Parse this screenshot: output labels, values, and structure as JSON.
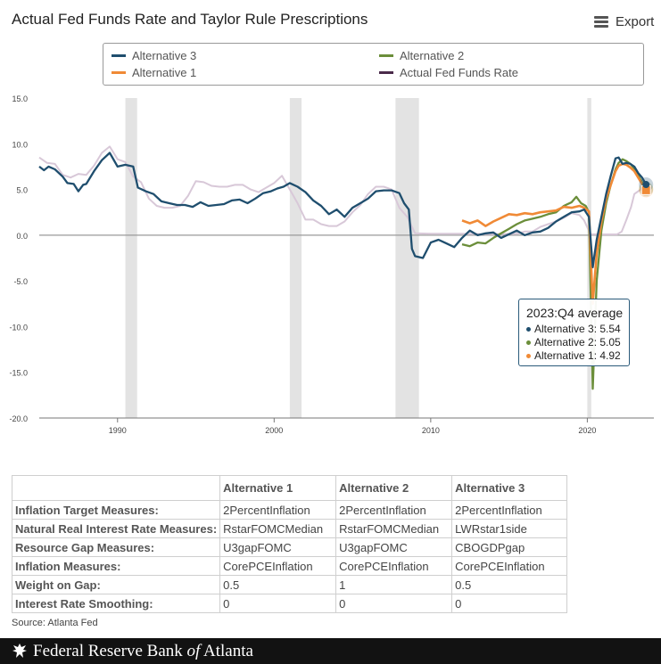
{
  "title": "Actual Fed Funds Rate and Taylor Rule Prescriptions",
  "export_label": "Export",
  "legend": [
    {
      "label": "Alternative 3",
      "color": "#1f4e6e"
    },
    {
      "label": "Alternative 2",
      "color": "#6b8e3a"
    },
    {
      "label": "Alternative 1",
      "color": "#f08a36"
    },
    {
      "label": "Actual Fed Funds Rate",
      "color": "#4a2a4a"
    }
  ],
  "tooltip": {
    "title": "2023:Q4 average",
    "rows": [
      {
        "text": "Alternative 3: 5.54",
        "color": "#1f4e6e"
      },
      {
        "text": "Alternative 2: 5.05",
        "color": "#6b8e3a"
      },
      {
        "text": "Alternative 1: 4.92",
        "color": "#f08a36"
      }
    ]
  },
  "chart_data": {
    "type": "line",
    "ylim": [
      -20,
      15
    ],
    "xlim": [
      1985.0,
      2024.25
    ],
    "yticks": [
      "15.0",
      "10.0",
      "5.0",
      "0.0",
      "-5.0",
      "-10.0",
      "-15.0",
      "-20.0"
    ],
    "yticks_values": [
      15,
      10,
      5,
      0,
      -5,
      -10,
      -15,
      -20
    ],
    "xticks": [
      "1990",
      "2000",
      "2010",
      "2020"
    ],
    "xticks_values": [
      1990,
      2000,
      2010,
      2020
    ],
    "recessions": [
      [
        1990.5,
        1991.25
      ],
      [
        2001.0,
        2001.75
      ],
      [
        2007.75,
        2009.25
      ],
      [
        2020.0,
        2020.25
      ]
    ],
    "series": [
      {
        "name": "Actual Fed Funds Rate",
        "color": "#d8c8d8",
        "points": [
          [
            1985.0,
            8.5
          ],
          [
            1985.5,
            7.9
          ],
          [
            1986.0,
            7.8
          ],
          [
            1986.5,
            6.6
          ],
          [
            1987.0,
            6.3
          ],
          [
            1987.5,
            6.7
          ],
          [
            1988.0,
            6.6
          ],
          [
            1988.5,
            7.6
          ],
          [
            1989.0,
            9.0
          ],
          [
            1989.5,
            9.7
          ],
          [
            1990.0,
            8.3
          ],
          [
            1990.5,
            8.0
          ],
          [
            1991.0,
            6.4
          ],
          [
            1991.5,
            5.8
          ],
          [
            1992.0,
            4.0
          ],
          [
            1992.5,
            3.2
          ],
          [
            1993.0,
            3.0
          ],
          [
            1993.5,
            3.0
          ],
          [
            1994.0,
            3.2
          ],
          [
            1994.5,
            4.3
          ],
          [
            1995.0,
            5.9
          ],
          [
            1995.5,
            5.8
          ],
          [
            1996.0,
            5.4
          ],
          [
            1996.5,
            5.3
          ],
          [
            1997.0,
            5.3
          ],
          [
            1997.5,
            5.5
          ],
          [
            1998.0,
            5.5
          ],
          [
            1998.5,
            5.0
          ],
          [
            1999.0,
            4.7
          ],
          [
            1999.5,
            5.2
          ],
          [
            2000.0,
            5.7
          ],
          [
            2000.5,
            6.5
          ],
          [
            2001.0,
            5.0
          ],
          [
            2001.5,
            3.5
          ],
          [
            2002.0,
            1.7
          ],
          [
            2002.5,
            1.7
          ],
          [
            2003.0,
            1.2
          ],
          [
            2003.5,
            1.0
          ],
          [
            2004.0,
            1.0
          ],
          [
            2004.5,
            1.5
          ],
          [
            2005.0,
            2.5
          ],
          [
            2005.5,
            3.3
          ],
          [
            2006.0,
            4.5
          ],
          [
            2006.5,
            5.3
          ],
          [
            2007.0,
            5.3
          ],
          [
            2007.5,
            5.0
          ],
          [
            2008.0,
            3.0
          ],
          [
            2008.5,
            2.0
          ],
          [
            2009.0,
            0.2
          ],
          [
            2010.0,
            0.15
          ],
          [
            2012.0,
            0.15
          ],
          [
            2014.0,
            0.1
          ],
          [
            2015.5,
            0.15
          ],
          [
            2016.0,
            0.4
          ],
          [
            2016.5,
            0.4
          ],
          [
            2017.0,
            0.9
          ],
          [
            2017.5,
            1.2
          ],
          [
            2018.0,
            1.5
          ],
          [
            2018.5,
            1.9
          ],
          [
            2019.0,
            2.4
          ],
          [
            2019.5,
            2.2
          ],
          [
            2019.8,
            1.6
          ],
          [
            2020.2,
            0.1
          ],
          [
            2021.0,
            0.08
          ],
          [
            2021.9,
            0.08
          ],
          [
            2022.2,
            0.4
          ],
          [
            2022.5,
            1.7
          ],
          [
            2022.8,
            3.1
          ],
          [
            2023.0,
            4.5
          ],
          [
            2023.5,
            5.1
          ],
          [
            2023.8,
            5.3
          ]
        ]
      },
      {
        "name": "Alternative 2",
        "color": "#6b8e3a",
        "points": [
          [
            2012.0,
            -1.0
          ],
          [
            2012.5,
            -1.2
          ],
          [
            2013.0,
            -0.8
          ],
          [
            2013.5,
            -0.9
          ],
          [
            2014.0,
            -0.3
          ],
          [
            2014.5,
            0.2
          ],
          [
            2015.0,
            0.7
          ],
          [
            2015.5,
            1.2
          ],
          [
            2016.0,
            1.6
          ],
          [
            2016.5,
            1.8
          ],
          [
            2017.0,
            2.0
          ],
          [
            2017.5,
            2.3
          ],
          [
            2018.0,
            2.5
          ],
          [
            2018.5,
            3.2
          ],
          [
            2019.0,
            3.6
          ],
          [
            2019.3,
            4.2
          ],
          [
            2019.6,
            3.5
          ],
          [
            2019.9,
            3.2
          ],
          [
            2020.1,
            2.5
          ],
          [
            2020.35,
            -16.8
          ],
          [
            2020.6,
            -5.0
          ],
          [
            2020.9,
            0.5
          ],
          [
            2021.2,
            3.5
          ],
          [
            2021.5,
            5.5
          ],
          [
            2021.8,
            7.2
          ],
          [
            2022.0,
            7.9
          ],
          [
            2022.25,
            8.3
          ],
          [
            2022.5,
            8.1
          ],
          [
            2022.75,
            7.8
          ],
          [
            2023.0,
            7.3
          ],
          [
            2023.25,
            6.5
          ],
          [
            2023.5,
            5.8
          ],
          [
            2023.75,
            5.05
          ]
        ]
      },
      {
        "name": "Alternative 1",
        "color": "#f08a36",
        "points": [
          [
            2012.0,
            1.6
          ],
          [
            2012.5,
            1.3
          ],
          [
            2013.0,
            1.6
          ],
          [
            2013.5,
            1.0
          ],
          [
            2014.0,
            1.5
          ],
          [
            2014.5,
            1.9
          ],
          [
            2015.0,
            2.3
          ],
          [
            2015.5,
            2.2
          ],
          [
            2016.0,
            2.4
          ],
          [
            2016.5,
            2.3
          ],
          [
            2017.0,
            2.5
          ],
          [
            2017.5,
            2.6
          ],
          [
            2018.0,
            2.7
          ],
          [
            2018.5,
            3.1
          ],
          [
            2019.0,
            3.0
          ],
          [
            2019.5,
            3.2
          ],
          [
            2019.8,
            3.0
          ],
          [
            2020.1,
            2.6
          ],
          [
            2020.35,
            -7.5
          ],
          [
            2020.6,
            -2.0
          ],
          [
            2020.9,
            1.5
          ],
          [
            2021.2,
            4.0
          ],
          [
            2021.5,
            5.5
          ],
          [
            2021.8,
            7.0
          ],
          [
            2022.0,
            7.6
          ],
          [
            2022.25,
            7.8
          ],
          [
            2022.5,
            7.7
          ],
          [
            2022.75,
            7.4
          ],
          [
            2023.0,
            7.0
          ],
          [
            2023.25,
            6.3
          ],
          [
            2023.5,
            5.6
          ],
          [
            2023.75,
            4.92
          ]
        ]
      },
      {
        "name": "Alternative 3",
        "color": "#1f4e6e",
        "points": [
          [
            1985.0,
            7.5
          ],
          [
            1985.3,
            7.1
          ],
          [
            1985.6,
            7.5
          ],
          [
            1986.0,
            7.2
          ],
          [
            1986.5,
            6.4
          ],
          [
            1986.8,
            5.7
          ],
          [
            1987.2,
            5.6
          ],
          [
            1987.5,
            4.8
          ],
          [
            1987.8,
            5.5
          ],
          [
            1988.0,
            5.6
          ],
          [
            1988.5,
            7.0
          ],
          [
            1989.0,
            8.2
          ],
          [
            1989.5,
            9.0
          ],
          [
            1990.0,
            7.5
          ],
          [
            1990.5,
            7.7
          ],
          [
            1991.0,
            7.5
          ],
          [
            1991.3,
            5.2
          ],
          [
            1991.8,
            4.8
          ],
          [
            1992.3,
            4.5
          ],
          [
            1992.8,
            3.7
          ],
          [
            1993.3,
            3.5
          ],
          [
            1993.8,
            3.3
          ],
          [
            1994.3,
            3.3
          ],
          [
            1994.8,
            3.1
          ],
          [
            1995.3,
            3.6
          ],
          [
            1995.8,
            3.2
          ],
          [
            1996.3,
            3.3
          ],
          [
            1996.8,
            3.4
          ],
          [
            1997.3,
            3.8
          ],
          [
            1997.8,
            3.9
          ],
          [
            1998.3,
            3.5
          ],
          [
            1998.8,
            4.0
          ],
          [
            1999.3,
            4.6
          ],
          [
            1999.8,
            4.8
          ],
          [
            2000.2,
            5.1
          ],
          [
            2000.6,
            5.3
          ],
          [
            2001.0,
            5.7
          ],
          [
            2001.5,
            5.3
          ],
          [
            2002.0,
            4.7
          ],
          [
            2002.5,
            3.8
          ],
          [
            2003.0,
            3.2
          ],
          [
            2003.5,
            2.3
          ],
          [
            2004.0,
            2.8
          ],
          [
            2004.5,
            2.0
          ],
          [
            2005.0,
            3.0
          ],
          [
            2005.5,
            3.5
          ],
          [
            2006.0,
            4.0
          ],
          [
            2006.5,
            4.8
          ],
          [
            2007.0,
            4.9
          ],
          [
            2007.5,
            4.9
          ],
          [
            2008.0,
            4.6
          ],
          [
            2008.3,
            3.5
          ],
          [
            2008.6,
            2.8
          ],
          [
            2008.8,
            -1.5
          ],
          [
            2009.0,
            -2.3
          ],
          [
            2009.5,
            -2.5
          ],
          [
            2010.0,
            -0.8
          ],
          [
            2010.5,
            -0.5
          ],
          [
            2011.0,
            -0.9
          ],
          [
            2011.5,
            -1.3
          ],
          [
            2012.0,
            -0.3
          ],
          [
            2012.5,
            0.5
          ],
          [
            2013.0,
            0.0
          ],
          [
            2013.5,
            0.2
          ],
          [
            2014.0,
            0.3
          ],
          [
            2014.5,
            -0.3
          ],
          [
            2015.0,
            0.1
          ],
          [
            2015.5,
            0.5
          ],
          [
            2016.0,
            0.0
          ],
          [
            2016.5,
            0.3
          ],
          [
            2017.0,
            0.4
          ],
          [
            2017.5,
            0.8
          ],
          [
            2018.0,
            1.5
          ],
          [
            2018.5,
            2.0
          ],
          [
            2019.0,
            2.5
          ],
          [
            2019.5,
            2.6
          ],
          [
            2019.8,
            2.8
          ],
          [
            2020.1,
            2.0
          ],
          [
            2020.35,
            -3.5
          ],
          [
            2020.6,
            -0.5
          ],
          [
            2020.9,
            2.0
          ],
          [
            2021.2,
            4.5
          ],
          [
            2021.5,
            6.5
          ],
          [
            2021.8,
            8.4
          ],
          [
            2022.0,
            8.5
          ],
          [
            2022.25,
            7.8
          ],
          [
            2022.5,
            7.9
          ],
          [
            2022.75,
            7.8
          ],
          [
            2023.0,
            7.5
          ],
          [
            2023.25,
            6.8
          ],
          [
            2023.5,
            6.3
          ],
          [
            2023.75,
            5.54
          ]
        ]
      }
    ]
  },
  "table": {
    "headers": [
      "Alternative 1",
      "Alternative 2",
      "Alternative 3"
    ],
    "rows": [
      {
        "label": "Inflation Target Measures:",
        "values": [
          "2PercentInflation",
          "2PercentInflation",
          "2PercentInflation"
        ]
      },
      {
        "label": "Natural Real Interest Rate Measures:",
        "values": [
          "RstarFOMCMedian",
          "RstarFOMCMedian",
          "LWRstar1side"
        ]
      },
      {
        "label": "Resource Gap Measures:",
        "values": [
          "U3gapFOMC",
          "U3gapFOMC",
          "CBOGDPgap"
        ]
      },
      {
        "label": "Inflation Measures:",
        "values": [
          "CorePCEInflation",
          "CorePCEInflation",
          "CorePCEInflation"
        ]
      },
      {
        "label": "Weight on Gap:",
        "values": [
          "0.5",
          "1",
          "0.5"
        ]
      },
      {
        "label": "Interest Rate Smoothing:",
        "values": [
          "0",
          "0",
          "0"
        ]
      }
    ]
  },
  "source": "Source: Atlanta Fed",
  "footer": {
    "pre": "Federal Reserve Bank ",
    "italic": "of",
    "post": " Atlanta"
  }
}
